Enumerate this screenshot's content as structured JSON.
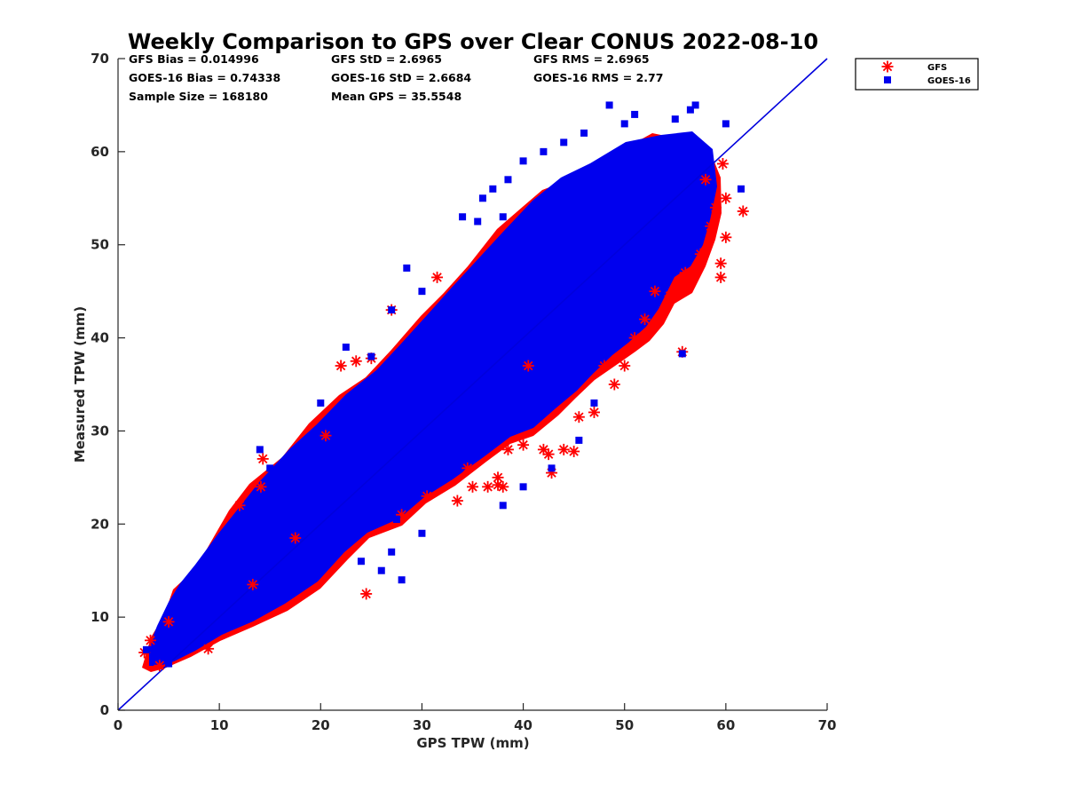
{
  "chart_data": {
    "type": "scatter",
    "title": "Weekly Comparison to GPS over Clear CONUS 2022-08-10",
    "xlabel": "GPS TPW (mm)",
    "ylabel": "Measured TPW (mm)",
    "xlim": [
      0,
      70
    ],
    "ylim": [
      0,
      70
    ],
    "xticks": [
      "0",
      "10",
      "20",
      "30",
      "40",
      "50",
      "60",
      "70"
    ],
    "yticks": [
      "0",
      "10",
      "20",
      "30",
      "40",
      "50",
      "60",
      "70"
    ],
    "grid": false,
    "legend_position": "outside-top-right",
    "stats": [
      [
        "GFS Bias = 0.014996",
        "GFS StD = 2.6965",
        "GFS RMS = 2.6965"
      ],
      [
        "GOES-16 Bias = 0.74338",
        "GOES-16 StD = 2.6684",
        "GOES-16 RMS = 2.77"
      ],
      [
        "Sample Size = 168180",
        "Mean GPS = 35.5548"
      ]
    ],
    "reference_line": {
      "label": "1:1",
      "from": [
        0,
        0
      ],
      "to": [
        70,
        70
      ],
      "color": "#0000dd"
    },
    "colors": {
      "gfs": "#ff0000",
      "goes": "#0000ee",
      "axis": "#262626"
    },
    "series": [
      {
        "name": "GFS",
        "marker": "asterisk",
        "color": "#ff0000",
        "points": [
          [
            2.6,
            6.2
          ],
          [
            3.2,
            7.5
          ],
          [
            4.1,
            4.8
          ],
          [
            5.0,
            9.5
          ],
          [
            8.9,
            6.6
          ],
          [
            12.0,
            22.0
          ],
          [
            13.3,
            13.5
          ],
          [
            14.3,
            27.0
          ],
          [
            14.1,
            24.0
          ],
          [
            17.5,
            18.5
          ],
          [
            20.5,
            29.5
          ],
          [
            22.0,
            37.0
          ],
          [
            23.5,
            37.5
          ],
          [
            24.5,
            12.5
          ],
          [
            25.0,
            37.8
          ],
          [
            27.0,
            43.0
          ],
          [
            28.0,
            21.0
          ],
          [
            30.5,
            23.0
          ],
          [
            31.5,
            46.5
          ],
          [
            33.5,
            22.5
          ],
          [
            34.5,
            26.0
          ],
          [
            35.0,
            24.0
          ],
          [
            36.5,
            24.0
          ],
          [
            37.5,
            25.0
          ],
          [
            37.5,
            24.2
          ],
          [
            38.0,
            24.0
          ],
          [
            38.5,
            28.0
          ],
          [
            40.0,
            28.5
          ],
          [
            42.0,
            28.0
          ],
          [
            42.5,
            27.5
          ],
          [
            42.8,
            25.5
          ],
          [
            44.0,
            28.0
          ],
          [
            45.0,
            27.8
          ],
          [
            45.5,
            31.5
          ],
          [
            47.0,
            32.0
          ],
          [
            48.0,
            37.0
          ],
          [
            49.0,
            35.0
          ],
          [
            50.0,
            37.0
          ],
          [
            51.0,
            40.0
          ],
          [
            52.0,
            42.0
          ],
          [
            53.0,
            45.0
          ],
          [
            54.5,
            44.5
          ],
          [
            55.7,
            38.5
          ],
          [
            56.0,
            47.0
          ],
          [
            57.5,
            49.0
          ],
          [
            58.5,
            52.0
          ],
          [
            59.5,
            46.5
          ],
          [
            59.5,
            48.0
          ],
          [
            60.0,
            50.8
          ],
          [
            59.7,
            58.7
          ],
          [
            61.7,
            53.6
          ],
          [
            60.0,
            55.0
          ],
          [
            59.0,
            54.0
          ],
          [
            58.0,
            57.0
          ],
          [
            40.5,
            37.0
          ]
        ]
      },
      {
        "name": "GOES-16",
        "marker": "square",
        "color": "#0000ee",
        "points": [
          [
            2.8,
            6.5
          ],
          [
            5.0,
            5.0
          ],
          [
            9.0,
            16.5
          ],
          [
            12.0,
            20.0
          ],
          [
            14.0,
            28.0
          ],
          [
            15.0,
            26.0
          ],
          [
            20.0,
            33.0
          ],
          [
            22.5,
            39.0
          ],
          [
            23.0,
            33.0
          ],
          [
            25.0,
            38.0
          ],
          [
            27.0,
            43.0
          ],
          [
            28.5,
            47.5
          ],
          [
            30.0,
            45.0
          ],
          [
            27.5,
            20.5
          ],
          [
            27.0,
            17.0
          ],
          [
            28.0,
            14.0
          ],
          [
            30.0,
            19.0
          ],
          [
            32.0,
            41.0
          ],
          [
            34.0,
            53.0
          ],
          [
            35.5,
            52.5
          ],
          [
            36.0,
            55.0
          ],
          [
            37.0,
            56.0
          ],
          [
            38.5,
            57.0
          ],
          [
            38.0,
            53.0
          ],
          [
            40.0,
            59.0
          ],
          [
            42.0,
            60.0
          ],
          [
            44.0,
            61.0
          ],
          [
            46.0,
            62.0
          ],
          [
            48.5,
            65.0
          ],
          [
            50.0,
            63.0
          ],
          [
            51.0,
            64.0
          ],
          [
            55.0,
            63.5
          ],
          [
            56.5,
            64.5
          ],
          [
            57.0,
            65.0
          ],
          [
            60.0,
            63.0
          ],
          [
            61.5,
            56.0
          ],
          [
            55.7,
            38.3
          ],
          [
            42.8,
            26.0
          ],
          [
            45.5,
            29.0
          ],
          [
            47.0,
            33.0
          ],
          [
            38.0,
            22.0
          ],
          [
            40.0,
            24.0
          ],
          [
            35.5,
            29.0
          ],
          [
            29.5,
            31.5
          ],
          [
            26.0,
            15.0
          ],
          [
            24.0,
            16.0
          ]
        ]
      }
    ]
  }
}
